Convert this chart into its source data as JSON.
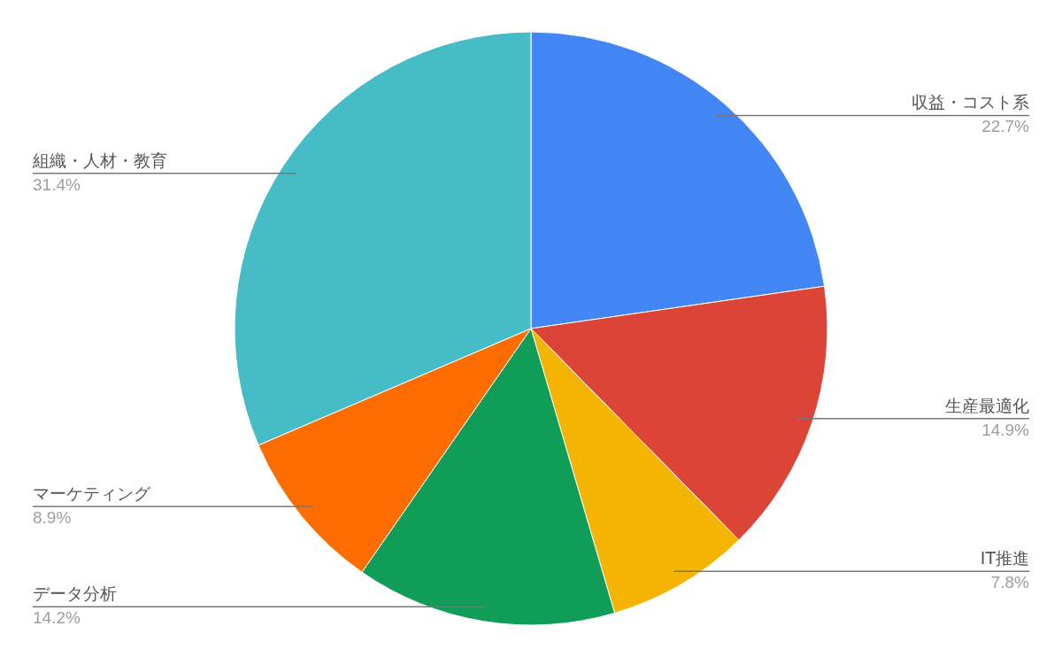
{
  "chart_data": {
    "type": "pie",
    "categories": [
      "収益・コスト系",
      "生産最適化",
      "IT推進",
      "データ分析",
      "マーケティング",
      "組織・人材・教育"
    ],
    "values": [
      22.7,
      14.9,
      7.8,
      14.2,
      8.9,
      31.4
    ],
    "colors": [
      "#4285f4",
      "#db4437",
      "#f4b400",
      "#0f9d58",
      "#ff6d00",
      "#46bdc6"
    ],
    "value_labels": [
      "22.7%",
      "14.9%",
      "7.8%",
      "14.2%",
      "8.9%",
      "31.4%"
    ]
  }
}
